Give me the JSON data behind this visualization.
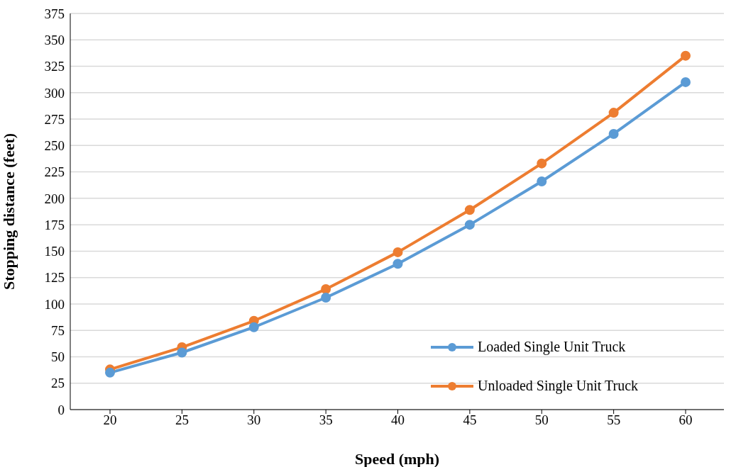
{
  "chart_data": {
    "type": "line",
    "xlabel": "Speed (mph)",
    "ylabel": "Stopping distance (feet)",
    "categories": [
      "20",
      "25",
      "30",
      "35",
      "40",
      "45",
      "50",
      "55",
      "60"
    ],
    "series": [
      {
        "name": "Loaded Single Unit Truck",
        "color": "#5b9bd5",
        "values": [
          35,
          54,
          78,
          106,
          138,
          175,
          216,
          261,
          310
        ]
      },
      {
        "name": "Unloaded Single Unit Truck",
        "color": "#ed7d31",
        "values": [
          38,
          59,
          84,
          114,
          149,
          189,
          233,
          281,
          335
        ]
      }
    ],
    "ylim": [
      0,
      375
    ],
    "yticks": [
      0,
      25,
      50,
      75,
      100,
      125,
      150,
      175,
      200,
      225,
      250,
      275,
      300,
      325,
      350,
      375
    ],
    "grid": "y",
    "legend": "bottom right",
    "marker": "circle",
    "line_style": "solid"
  }
}
